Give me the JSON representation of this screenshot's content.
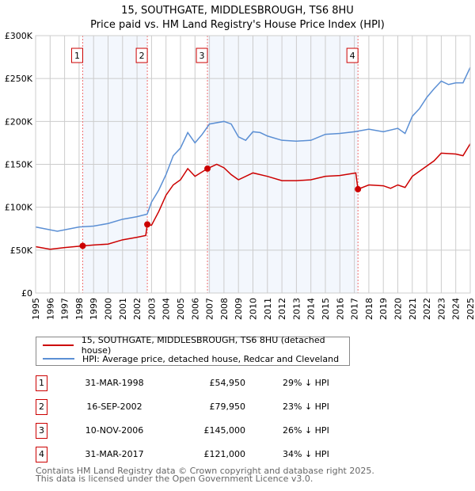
{
  "chart_data": {
    "type": "line",
    "title": "15, SOUTHGATE, MIDDLESBROUGH, TS6 8HU",
    "subtitle": "Price paid vs. HM Land Registry's House Price Index (HPI)",
    "xlim": [
      1995,
      2025
    ],
    "ylim": [
      0,
      300000
    ],
    "y_ticks": [
      0,
      50000,
      100000,
      150000,
      200000,
      250000,
      300000
    ],
    "y_tick_labels": [
      "£0",
      "£50K",
      "£100K",
      "£150K",
      "£200K",
      "£250K",
      "£300K"
    ],
    "x_ticks": [
      1995,
      1996,
      1997,
      1998,
      1999,
      2000,
      2001,
      2002,
      2003,
      2004,
      2005,
      2006,
      2007,
      2008,
      2009,
      2010,
      2011,
      2012,
      2013,
      2014,
      2015,
      2016,
      2017,
      2018,
      2019,
      2020,
      2021,
      2022,
      2023,
      2024,
      2025
    ],
    "grid": true,
    "series": [
      {
        "name": "15, SOUTHGATE, MIDDLESBROUGH, TS6 8HU (detached house)",
        "color": "#cc0000",
        "x": [
          1995,
          1996,
          1997,
          1998.25,
          1999,
          2000,
          2001,
          2002,
          2002.6,
          2002.71,
          2003,
          2003.5,
          2004,
          2004.5,
          2005,
          2005.5,
          2006,
          2006.86,
          2007.5,
          2008,
          2008.5,
          2009,
          2010,
          2011,
          2012,
          2013,
          2014,
          2015,
          2016,
          2017.1,
          2017.25,
          2018,
          2019,
          2019.5,
          2020,
          2020.5,
          2021,
          2022,
          2022.5,
          2023,
          2024,
          2024.5,
          2025
        ],
        "y": [
          54000,
          51000,
          53000,
          54950,
          56000,
          57000,
          62000,
          65000,
          67000,
          79950,
          79000,
          95000,
          114000,
          126000,
          132000,
          145000,
          136000,
          145000,
          150000,
          146000,
          138000,
          132000,
          140000,
          136000,
          131000,
          131000,
          132000,
          136000,
          137000,
          140000,
          121000,
          126000,
          125000,
          122000,
          126000,
          123000,
          136000,
          148000,
          154000,
          163000,
          162000,
          160000,
          174000
        ]
      },
      {
        "name": "HPI: Average price, detached house, Redcar and Cleveland",
        "color": "#5b8fd4",
        "x": [
          1995,
          1996.5,
          1998,
          1999,
          2000,
          2001,
          2002,
          2002.7,
          2003,
          2003.5,
          2004,
          2004.5,
          2005,
          2005.5,
          2006,
          2006.5,
          2007,
          2008,
          2008.5,
          2009,
          2009.5,
          2010,
          2010.5,
          2011,
          2012,
          2013,
          2014,
          2015,
          2016,
          2017,
          2018,
          2019,
          2020,
          2020.5,
          2021,
          2021.5,
          2022,
          2022.5,
          2023,
          2023.5,
          2024,
          2024.5,
          2025
        ],
        "y": [
          77000,
          72000,
          77000,
          78000,
          81000,
          86000,
          89000,
          92000,
          106000,
          120000,
          138000,
          160000,
          169000,
          187000,
          175000,
          185000,
          197000,
          200000,
          197000,
          182000,
          178000,
          188000,
          187000,
          183000,
          178000,
          177000,
          178000,
          185000,
          186000,
          188000,
          191000,
          188000,
          192000,
          186000,
          206000,
          215000,
          228000,
          238000,
          247000,
          243000,
          245000,
          245000,
          263000
        ]
      }
    ],
    "sales": [
      {
        "label": "1",
        "date": "31-MAR-1998",
        "x": 1998.25,
        "price": "£54,950",
        "value": 54950,
        "hpi": "29% ↓ HPI"
      },
      {
        "label": "2",
        "date": "16-SEP-2002",
        "x": 2002.71,
        "price": "£79,950",
        "value": 79950,
        "hpi": "23% ↓ HPI"
      },
      {
        "label": "3",
        "date": "10-NOV-2006",
        "x": 2006.86,
        "price": "£145,000",
        "value": 145000,
        "hpi": "26% ↓ HPI"
      },
      {
        "label": "4",
        "date": "31-MAR-2017",
        "x": 2017.25,
        "price": "£121,000",
        "value": 121000,
        "hpi": "34% ↓ HPI"
      }
    ],
    "shaded_ranges": [
      [
        1998.25,
        2002.71
      ],
      [
        2006.86,
        2017.25
      ]
    ]
  },
  "footer": {
    "line1": "Contains HM Land Registry data © Crown copyright and database right 2025.",
    "line2": "This data is licensed under the Open Government Licence v3.0."
  }
}
